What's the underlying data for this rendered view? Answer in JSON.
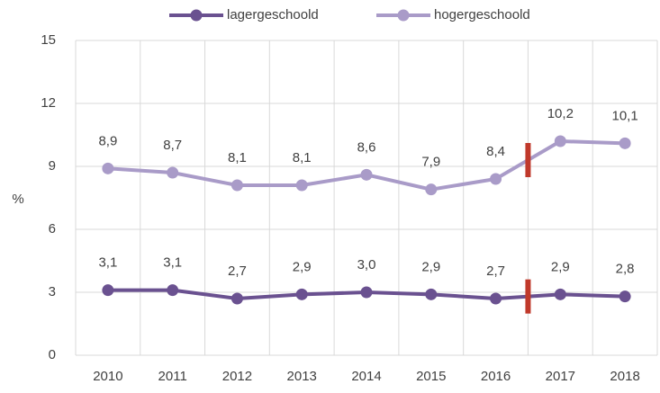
{
  "chart_data": {
    "type": "line",
    "categories": [
      "2010",
      "2011",
      "2012",
      "2013",
      "2014",
      "2015",
      "2016",
      "2017",
      "2018"
    ],
    "series": [
      {
        "name": "lagergeschoold",
        "color": "#6a5190",
        "values": [
          3.1,
          3.1,
          2.7,
          2.9,
          3.0,
          2.9,
          2.7,
          2.9,
          2.8
        ],
        "value_labels": [
          "3,1",
          "3,1",
          "2,7",
          "2,9",
          "3,0",
          "2,9",
          "2,7",
          "2,9",
          "2,8"
        ]
      },
      {
        "name": "hogergeschoold",
        "color": "#a99bc8",
        "values": [
          8.9,
          8.7,
          8.1,
          8.1,
          8.6,
          7.9,
          8.4,
          10.2,
          10.1
        ],
        "value_labels": [
          "8,9",
          "8,7",
          "8,1",
          "8,1",
          "8,6",
          "7,9",
          "8,4",
          "10,2",
          "10,1"
        ]
      }
    ],
    "ylabel": "%",
    "ylim": [
      0,
      15
    ],
    "yticks": [
      0,
      3,
      6,
      9,
      12,
      15
    ],
    "grid": true,
    "legend": "top"
  }
}
